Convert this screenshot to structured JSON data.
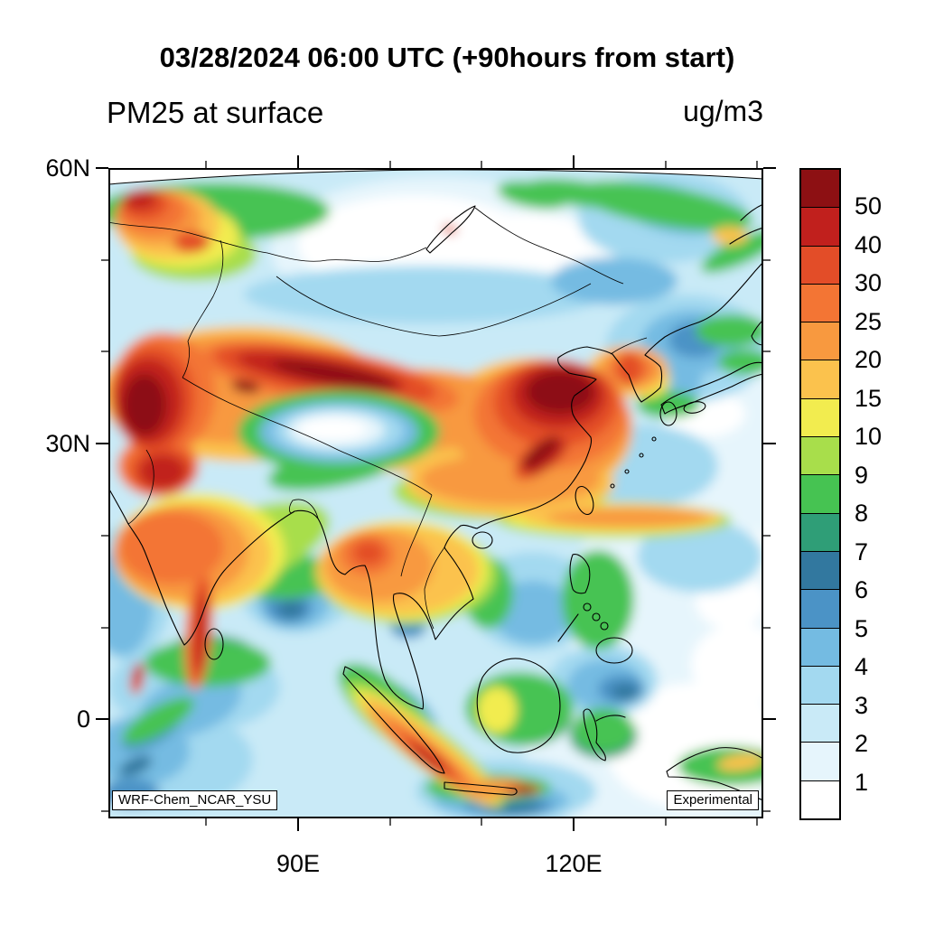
{
  "title": "03/28/2024 06:00 UTC (+90hours from start)",
  "variable_label": "PM25 at surface",
  "units_label": "ug/m3",
  "axes": {
    "y_ticks": [
      "60N",
      "30N",
      "0"
    ],
    "x_ticks": [
      "90E",
      "120E"
    ]
  },
  "colorbar": {
    "labels_top_to_bottom": [
      "50",
      "40",
      "30",
      "25",
      "20",
      "15",
      "10",
      "9",
      "8",
      "7",
      "6",
      "5",
      "4",
      "3",
      "2",
      "1"
    ],
    "colors_bottom_to_top": [
      "#ffffff",
      "#e6f5fc",
      "#c9eaf7",
      "#a3d9f0",
      "#74bbe2",
      "#4b93c6",
      "#32789f",
      "#2f9e77",
      "#46c352",
      "#a8de4b",
      "#f2ec4f",
      "#fbc24d",
      "#f8993f",
      "#f37534",
      "#e34d28",
      "#c1201d",
      "#8d1013"
    ]
  },
  "annotations": {
    "model": "WRF-Chem_NCAR_YSU",
    "status": "Experimental"
  }
}
